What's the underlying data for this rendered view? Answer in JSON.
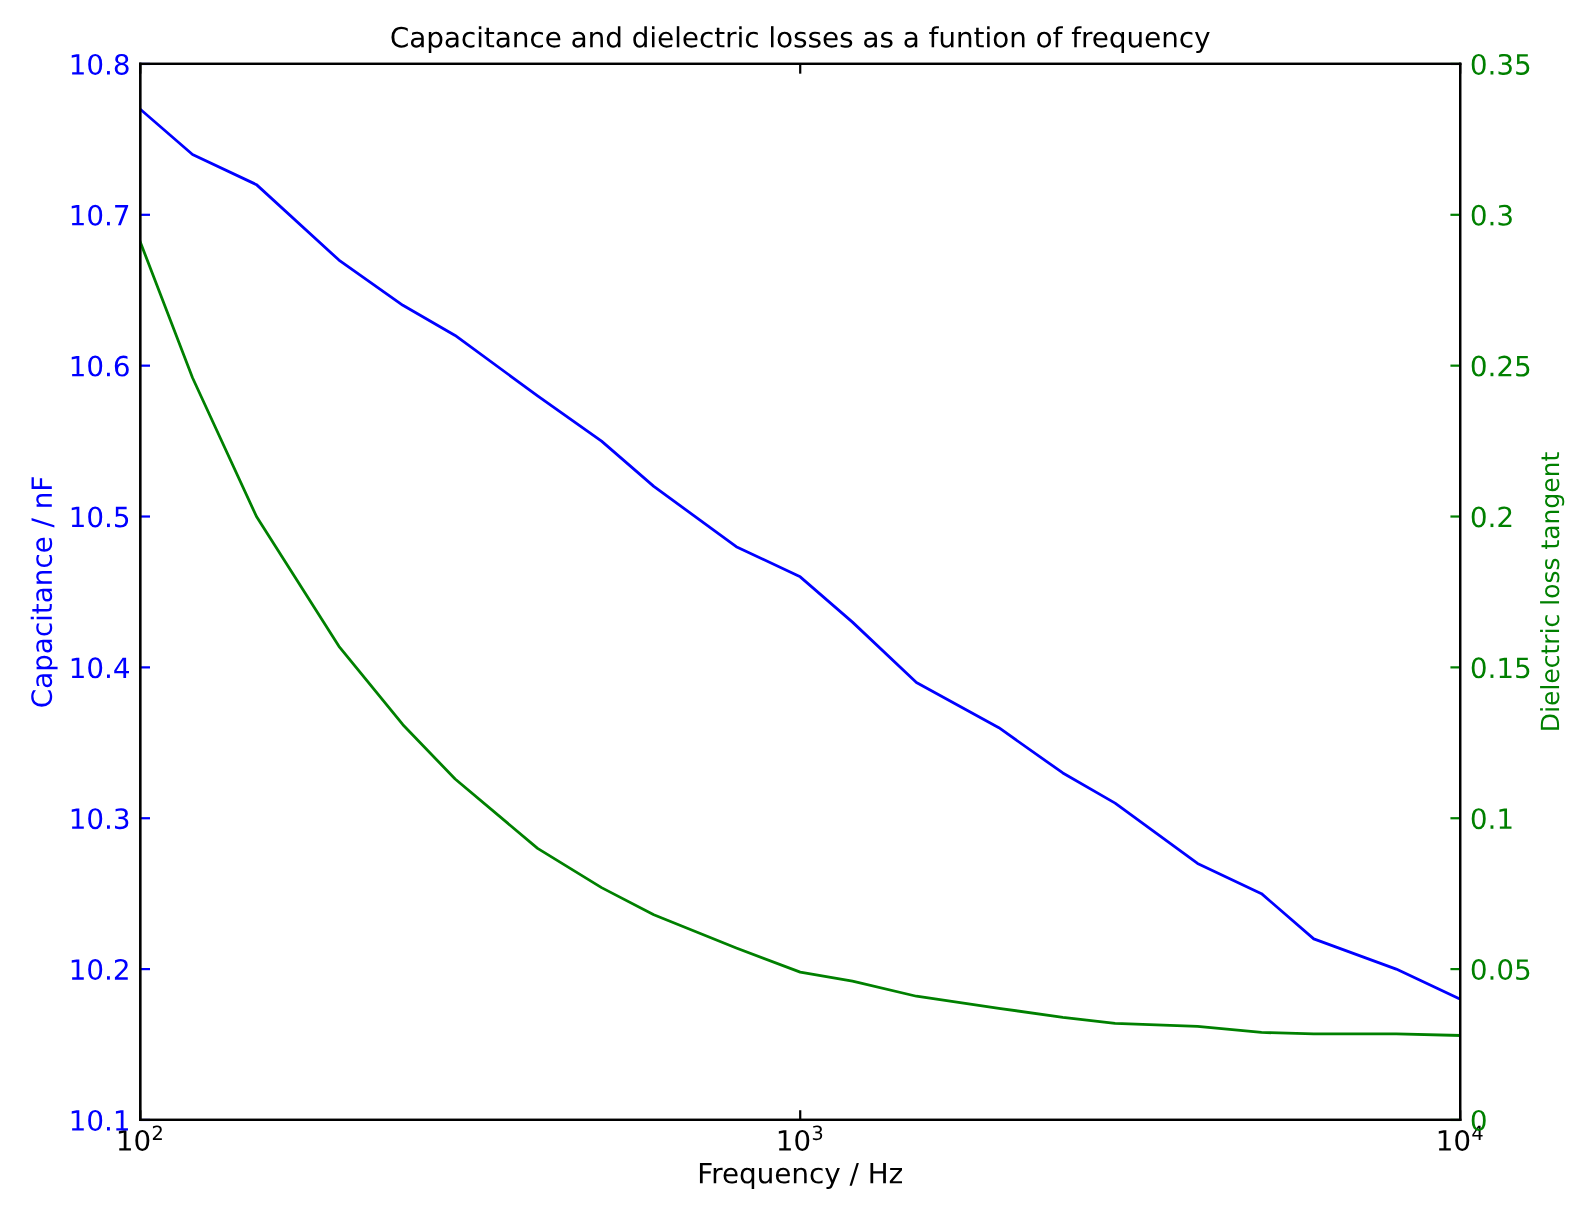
{
  "chart_data": {
    "type": "line",
    "title": "Capacitance and dielectric losses as a funtion of frequency",
    "xlabel": "Frequency / Hz",
    "ylabel": "Capacitance / nF",
    "y2label": "Dielectric loss tangent",
    "x": [
      100,
      120,
      150,
      200,
      250,
      300,
      400,
      500,
      600,
      800,
      1000,
      1200,
      1500,
      2000,
      2500,
      3000,
      4000,
      5000,
      6000,
      8000,
      10000
    ],
    "series": [
      {
        "color": "#0000ff",
        "values": [
          10.77,
          10.74,
          10.72,
          10.67,
          10.64,
          10.62,
          10.58,
          10.55,
          10.52,
          10.48,
          10.46,
          10.43,
          10.39,
          10.36,
          10.33,
          10.31,
          10.27,
          10.25,
          10.22,
          10.2,
          10.18
        ]
      },
      {
        "color": "#008000",
        "axis": "y2",
        "values": [
          0.291,
          0.246,
          0.2,
          0.157,
          0.131,
          0.113,
          0.09,
          0.077,
          0.068,
          0.057,
          0.049,
          0.046,
          0.041,
          0.037,
          0.034,
          0.032,
          0.031,
          0.029,
          0.0285,
          0.0285,
          0.028
        ]
      }
    ],
    "log": "x",
    "xlim": [
      100,
      10000
    ],
    "xticks": [
      {
        "value": 100,
        "label": "10$^{2}$"
      },
      {
        "value": 1000,
        "label": "10$^{3}$"
      },
      {
        "value": 10000,
        "label": "10$^{4}$"
      }
    ],
    "ylim": [
      10.1,
      10.8
    ],
    "yticks": [
      10.1,
      10.2,
      10.3,
      10.4,
      10.5,
      10.6,
      10.7,
      10.8
    ],
    "y2lim": [
      0,
      0.35
    ],
    "y2ticks": [
      0,
      0.05,
      0.1,
      0.15,
      0.2,
      0.25,
      0.3,
      0.35
    ],
    "grid": false,
    "legend": false,
    "marker": "none",
    "line_style": "solid"
  }
}
